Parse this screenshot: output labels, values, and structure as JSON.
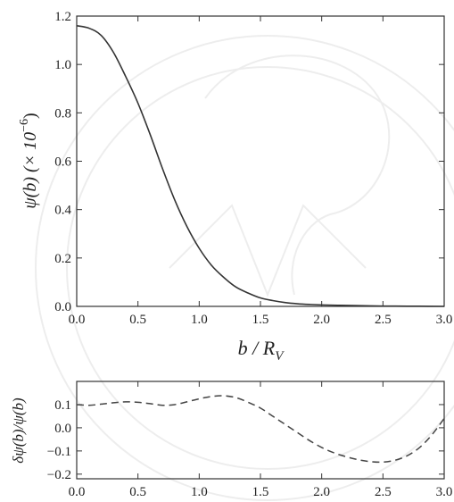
{
  "chart_data": [
    {
      "type": "line",
      "xlabel_base": "b / R",
      "xlabel_sub": "V",
      "ylabel_text": "ψ(b)  (× 10",
      "ylabel_exp": "−6",
      "ylabel_close": ")",
      "xlim": [
        0.0,
        3.0
      ],
      "ylim": [
        0.0,
        1.2
      ],
      "xticks": [
        "0.0",
        "0.5",
        "1.0",
        "1.5",
        "2.0",
        "2.5",
        "3.0"
      ],
      "yticks": [
        "0.0",
        "0.2",
        "0.4",
        "0.6",
        "0.8",
        "1.0",
        "1.2"
      ],
      "series": [
        {
          "style": "solid",
          "color": "#333333",
          "x": [
            0.0,
            0.1,
            0.2,
            0.3,
            0.4,
            0.5,
            0.6,
            0.7,
            0.8,
            0.9,
            1.0,
            1.1,
            1.2,
            1.3,
            1.4,
            1.5,
            1.6,
            1.7,
            1.8,
            1.9,
            2.0,
            2.2,
            2.4,
            2.6,
            2.8,
            3.0
          ],
          "y": [
            1.16,
            1.15,
            1.12,
            1.05,
            0.95,
            0.84,
            0.71,
            0.57,
            0.44,
            0.33,
            0.24,
            0.17,
            0.12,
            0.08,
            0.055,
            0.035,
            0.024,
            0.016,
            0.011,
            0.008,
            0.006,
            0.004,
            0.002,
            0.001,
            0.0005,
            0.0
          ]
        }
      ]
    },
    {
      "type": "line",
      "ylabel_text": "δψ(b)/ψ(b)",
      "xlim": [
        0.0,
        3.0
      ],
      "ylim": [
        -0.22,
        0.2
      ],
      "xticks": [
        "0.0",
        "0.5",
        "1.0",
        "1.5",
        "2.0",
        "2.5",
        "3.0"
      ],
      "yticks": [
        "0.1",
        "0.0",
        "−0.1",
        "−0.2"
      ],
      "ytick_values": [
        0.1,
        0.0,
        -0.1,
        -0.2
      ],
      "series": [
        {
          "style": "dashed",
          "color": "#444444",
          "x": [
            0.0,
            0.1,
            0.2,
            0.3,
            0.4,
            0.5,
            0.6,
            0.7,
            0.8,
            0.9,
            1.0,
            1.1,
            1.2,
            1.3,
            1.4,
            1.5,
            1.6,
            1.7,
            1.8,
            1.9,
            2.0,
            2.1,
            2.2,
            2.3,
            2.4,
            2.5,
            2.6,
            2.7,
            2.8,
            2.9,
            3.0
          ],
          "y": [
            0.1,
            0.097,
            0.102,
            0.108,
            0.112,
            0.11,
            0.104,
            0.097,
            0.1,
            0.112,
            0.125,
            0.135,
            0.138,
            0.13,
            0.11,
            0.085,
            0.05,
            0.015,
            -0.02,
            -0.055,
            -0.085,
            -0.108,
            -0.125,
            -0.138,
            -0.146,
            -0.148,
            -0.14,
            -0.12,
            -0.085,
            -0.03,
            0.04
          ]
        }
      ]
    }
  ]
}
